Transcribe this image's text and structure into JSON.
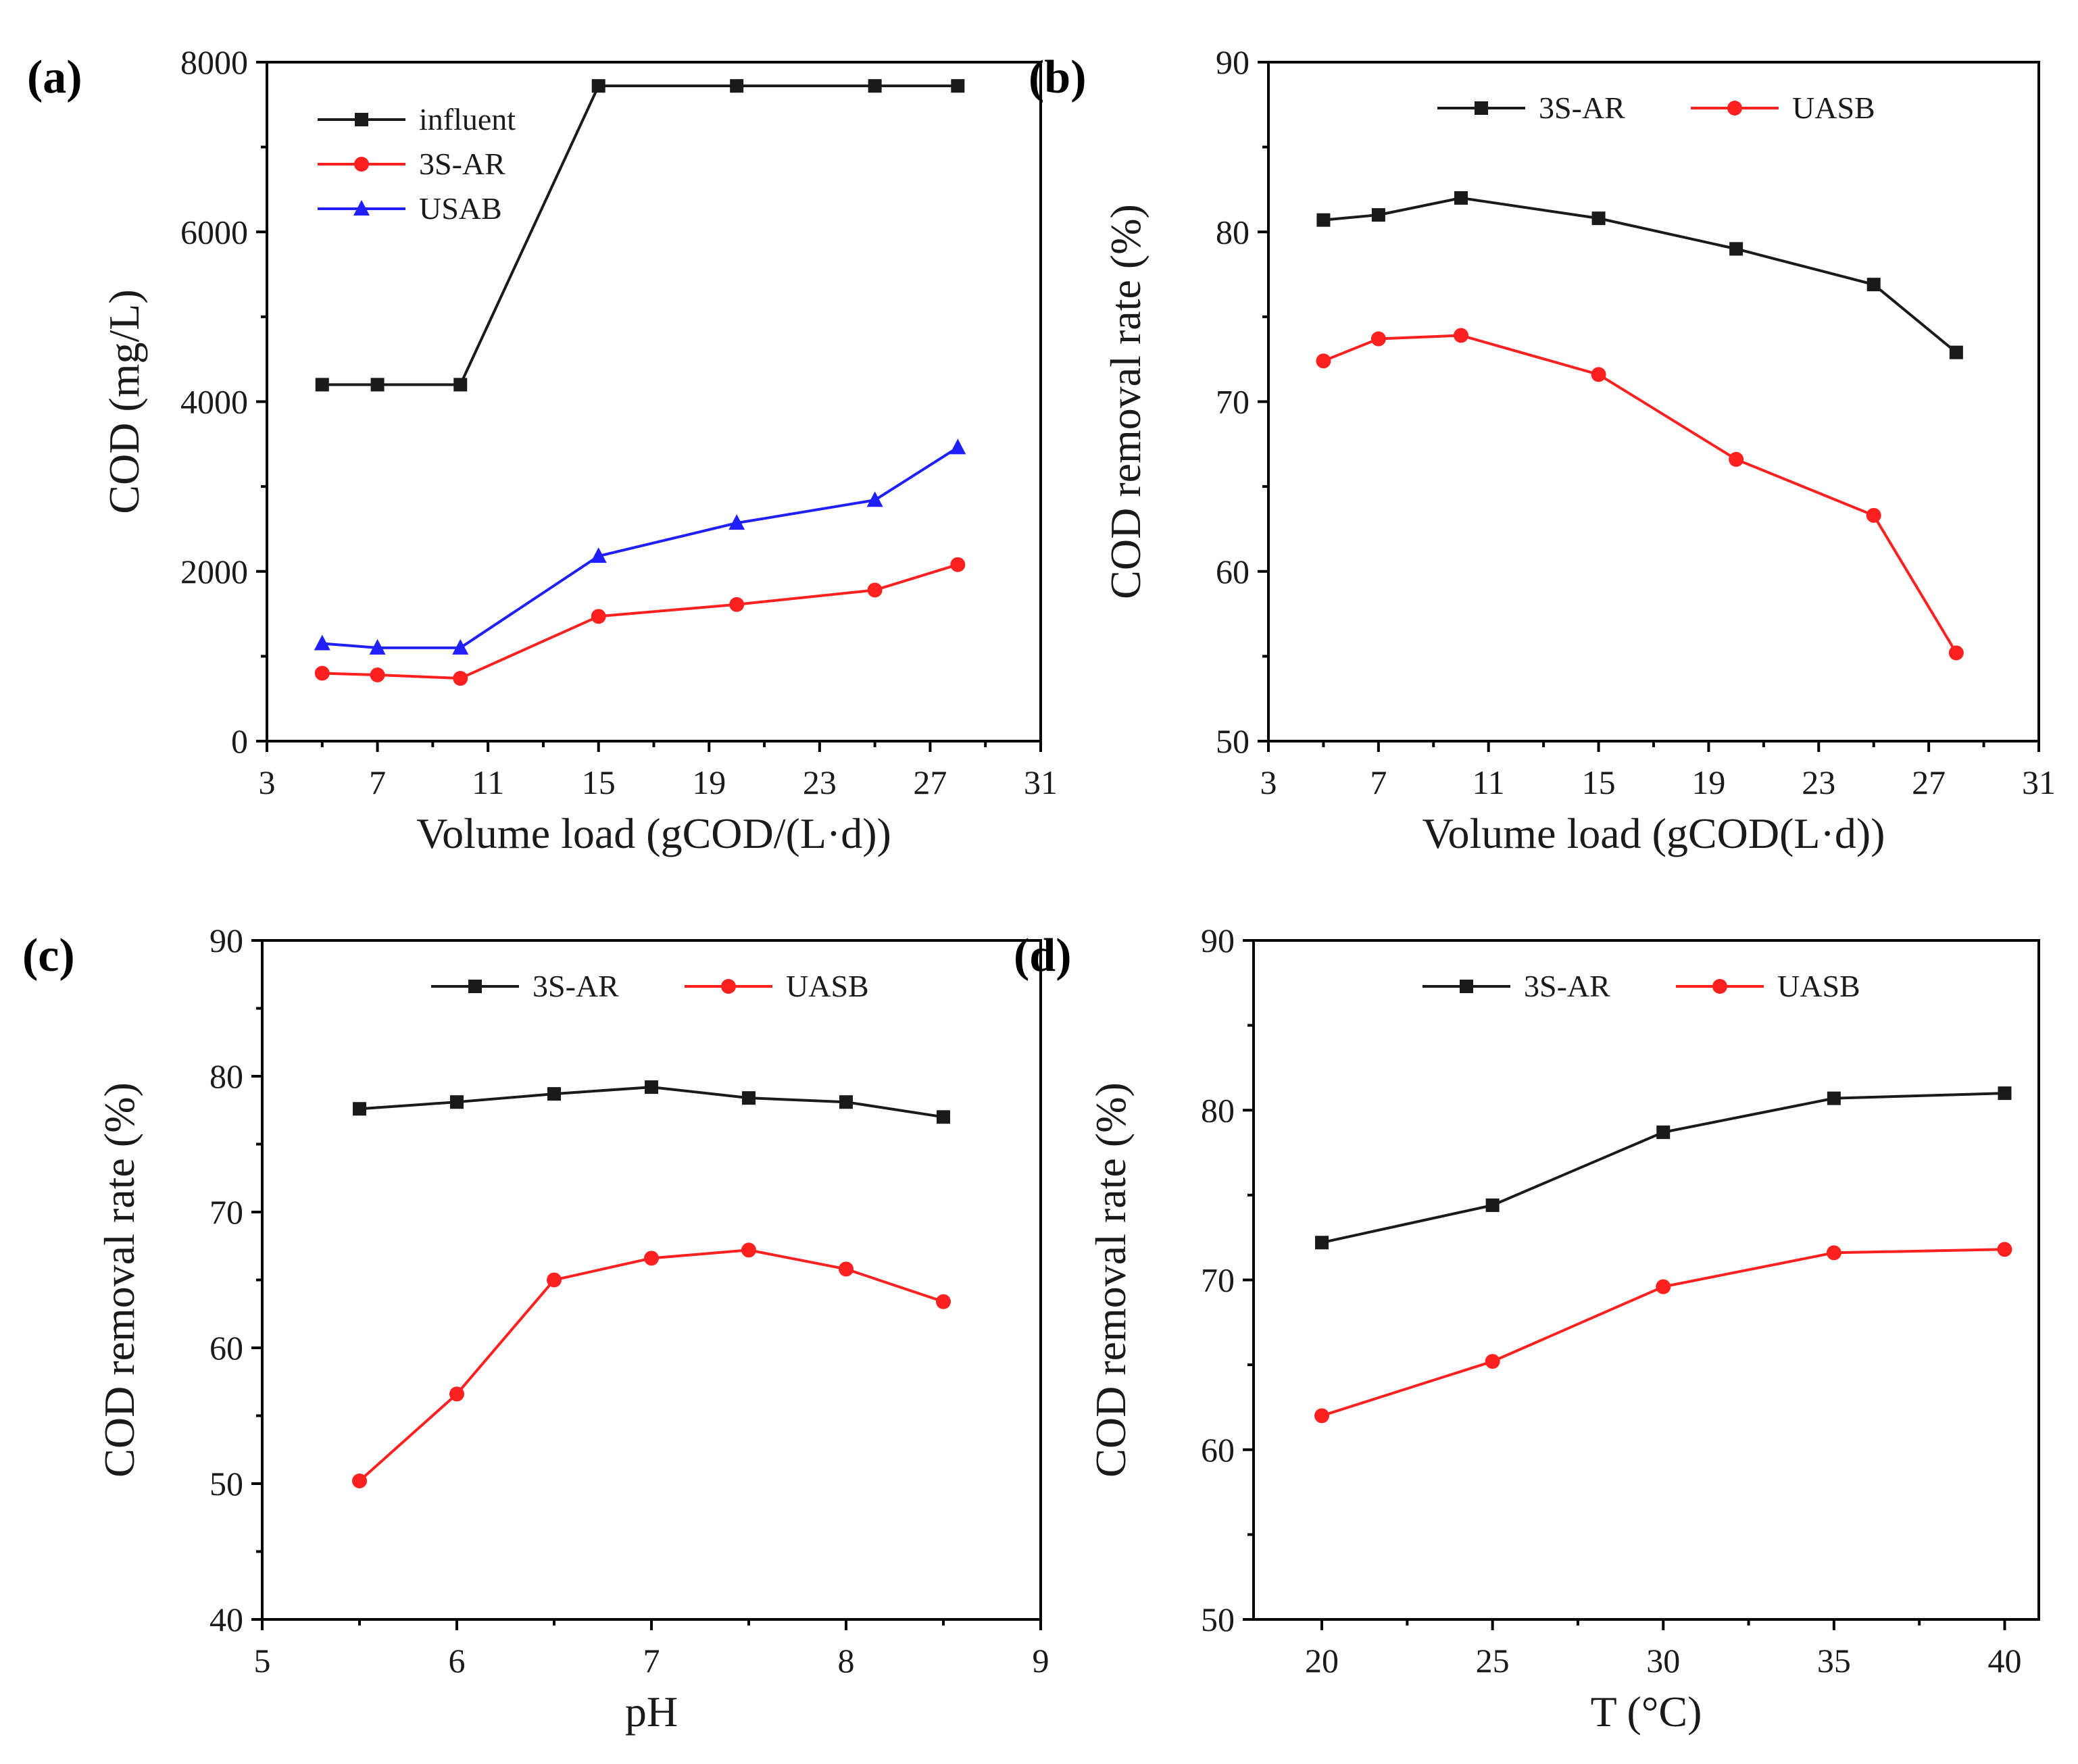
{
  "chart_data": [
    {
      "panel_label": "(a)",
      "type": "line",
      "xlabel": "Volume load (gCOD/(L·d))",
      "ylabel": "COD (mg/L)",
      "xlim": [
        3,
        31
      ],
      "ylim": [
        0,
        8000
      ],
      "xticks": [
        "3",
        "7",
        "11",
        "15",
        "19",
        "23",
        "27",
        "31"
      ],
      "yticks": [
        "0",
        "2000",
        "4000",
        "6000",
        "8000"
      ],
      "legend_position": "top-left",
      "legend_layout": "vertical",
      "series": [
        {
          "name": "influent",
          "color": "#1a1a1a",
          "marker": "square",
          "x": [
            5,
            7,
            10,
            15,
            20,
            25,
            28
          ],
          "y": [
            4200,
            4200,
            4200,
            7720,
            7720,
            7720,
            7720
          ]
        },
        {
          "name": "3S-AR",
          "color": "#ff2020",
          "marker": "circle",
          "x": [
            5,
            7,
            10,
            15,
            20,
            25,
            28
          ],
          "y": [
            800,
            780,
            740,
            1470,
            1610,
            1780,
            2080
          ]
        },
        {
          "name": "USAB",
          "color": "#2020ff",
          "marker": "triangle",
          "x": [
            5,
            7,
            10,
            15,
            20,
            25,
            28
          ],
          "y": [
            1150,
            1100,
            1100,
            2180,
            2570,
            2840,
            3460
          ]
        }
      ]
    },
    {
      "panel_label": "(b)",
      "type": "line",
      "xlabel": "Volume load (gCOD(L·d))",
      "ylabel": "COD removal rate (%)",
      "xlim": [
        3,
        31
      ],
      "ylim": [
        50,
        90
      ],
      "xticks": [
        "3",
        "7",
        "11",
        "15",
        "19",
        "23",
        "27",
        "31"
      ],
      "yticks": [
        "50",
        "60",
        "70",
        "80",
        "90"
      ],
      "legend_position": "top",
      "legend_layout": "horizontal",
      "series": [
        {
          "name": "3S-AR",
          "color": "#1a1a1a",
          "marker": "square",
          "x": [
            5,
            7,
            10,
            15,
            20,
            25,
            28
          ],
          "y": [
            80.7,
            81.0,
            82.0,
            80.8,
            79.0,
            76.9,
            72.9
          ]
        },
        {
          "name": "UASB",
          "color": "#ff2020",
          "marker": "circle",
          "x": [
            5,
            7,
            10,
            15,
            20,
            25,
            28
          ],
          "y": [
            72.4,
            73.7,
            73.9,
            71.6,
            66.6,
            63.3,
            55.2
          ]
        }
      ]
    },
    {
      "panel_label": "(c)",
      "type": "line",
      "xlabel": "pH",
      "ylabel": "COD removal rate (%)",
      "xlim": [
        5,
        9
      ],
      "ylim": [
        40,
        90
      ],
      "xticks": [
        "5",
        "6",
        "7",
        "8",
        "9"
      ],
      "yticks": [
        "40",
        "50",
        "60",
        "70",
        "80",
        "90"
      ],
      "legend_position": "top",
      "legend_layout": "horizontal",
      "series": [
        {
          "name": "3S-AR",
          "color": "#1a1a1a",
          "marker": "square",
          "x": [
            5.5,
            6,
            6.5,
            7,
            7.5,
            8,
            8.5
          ],
          "y": [
            77.6,
            78.1,
            78.7,
            79.2,
            78.4,
            78.1,
            77.0
          ]
        },
        {
          "name": "UASB",
          "color": "#ff2020",
          "marker": "circle",
          "x": [
            5.5,
            6,
            6.5,
            7,
            7.5,
            8,
            8.5
          ],
          "y": [
            50.2,
            56.6,
            65.0,
            66.6,
            67.2,
            65.8,
            63.4
          ]
        }
      ]
    },
    {
      "panel_label": "(d)",
      "type": "line",
      "xlabel": "T (°C)",
      "ylabel": "COD removal rate (%)",
      "xlim": [
        18,
        41
      ],
      "ylim": [
        50,
        90
      ],
      "xticks": [
        "20",
        "25",
        "30",
        "35",
        "40"
      ],
      "yticks": [
        "50",
        "60",
        "70",
        "80",
        "90"
      ],
      "legend_position": "top",
      "legend_layout": "horizontal",
      "series": [
        {
          "name": "3S-AR",
          "color": "#1a1a1a",
          "marker": "square",
          "x": [
            20,
            25,
            30,
            35,
            40
          ],
          "y": [
            72.2,
            74.4,
            78.7,
            80.7,
            81.0
          ]
        },
        {
          "name": "UASB",
          "color": "#ff2020",
          "marker": "circle",
          "x": [
            20,
            25,
            30,
            35,
            40
          ],
          "y": [
            62.0,
            65.2,
            69.6,
            71.6,
            71.8
          ]
        }
      ]
    }
  ]
}
